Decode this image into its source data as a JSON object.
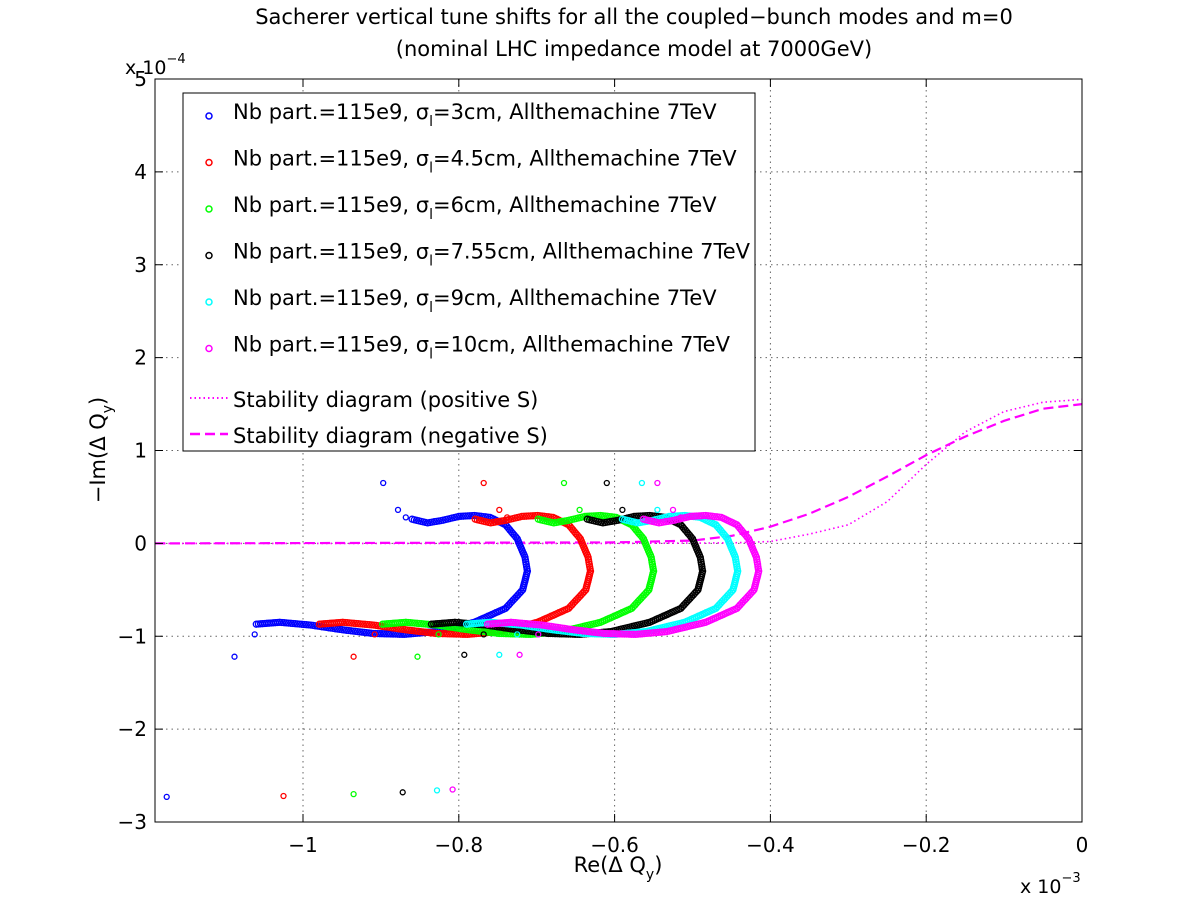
{
  "chart_data": {
    "type": "scatter",
    "title": "Sacherer vertical tune shifts for all the coupled−bunch modes and m=0",
    "subtitle": "(nominal LHC impedance model at 7000GeV)",
    "xlabel": "Re(Δ Q",
    "xlabel_sub": "y",
    "xlabel_close": ")",
    "ylabel": "−Im(Δ Q",
    "ylabel_sub": "y",
    "ylabel_close": ")",
    "x_multiplier_base": "x 10",
    "x_multiplier_exp": "−3",
    "y_multiplier_base": "x 10",
    "y_multiplier_exp": "−4",
    "xlim": [
      -1.19,
      0
    ],
    "ylim": [
      -3,
      5
    ],
    "x_ticks": [
      -1,
      -0.8,
      -0.6,
      -0.4,
      -0.2,
      0
    ],
    "x_tick_labels": [
      "−1",
      "−0.8",
      "−0.6",
      "−0.4",
      "−0.2",
      "0"
    ],
    "y_ticks": [
      -3,
      -2,
      -1,
      0,
      1,
      2,
      3,
      4,
      5
    ],
    "y_tick_labels": [
      "−3",
      "−2",
      "−1",
      "0",
      "1",
      "2",
      "3",
      "4",
      "5"
    ],
    "grid": true,
    "legend_position": "top-left",
    "series": [
      {
        "name_pre": "Nb part.=115e9, σ",
        "name_sub": "l",
        "name_post": "=3cm, Allthemachine 7TeV",
        "color": "#0000ff",
        "dx": 0,
        "outliers": [
          [
            -1.175,
            -2.73
          ],
          [
            -1.088,
            -1.22
          ],
          [
            -1.062,
            -0.98
          ],
          [
            -0.897,
            0.65
          ],
          [
            -0.878,
            0.36
          ],
          [
            -0.868,
            0.28
          ]
        ]
      },
      {
        "name_pre": "Nb part.=115e9, σ",
        "name_sub": "l",
        "name_post": "=4.5cm, Allthemachine 7TeV",
        "color": "#ff0000",
        "dx": 0.081,
        "outliers": [
          [
            -1.025,
            -2.72
          ],
          [
            -0.935,
            -1.22
          ],
          [
            -0.908,
            -0.98
          ],
          [
            -0.768,
            0.65
          ],
          [
            -0.748,
            0.36
          ],
          [
            -0.738,
            0.28
          ]
        ]
      },
      {
        "name_pre": "Nb part.=115e9, σ",
        "name_sub": "l",
        "name_post": "=6cm, Allthemachine 7TeV",
        "color": "#00ff00",
        "dx": 0.162,
        "outliers": [
          [
            -0.935,
            -2.7
          ],
          [
            -0.853,
            -1.22
          ],
          [
            -0.826,
            -0.98
          ],
          [
            -0.665,
            0.65
          ],
          [
            -0.645,
            0.36
          ],
          [
            -0.635,
            0.28
          ]
        ]
      },
      {
        "name_pre": "Nb part.=115e9, σ",
        "name_sub": "l",
        "name_post": "=7.55cm, Allthemachine 7TeV",
        "color": "#000000",
        "dx": 0.225,
        "outliers": [
          [
            -0.872,
            -2.68
          ],
          [
            -0.793,
            -1.2
          ],
          [
            -0.768,
            -0.98
          ],
          [
            -0.61,
            0.65
          ],
          [
            -0.59,
            0.36
          ],
          [
            -0.58,
            0.28
          ]
        ]
      },
      {
        "name_pre": "Nb part.=115e9, σ",
        "name_sub": "l",
        "name_post": "=9cm, Allthemachine 7TeV",
        "color": "#00ffff",
        "dx": 0.27,
        "outliers": [
          [
            -0.828,
            -2.66
          ],
          [
            -0.748,
            -1.2
          ],
          [
            -0.725,
            -0.98
          ],
          [
            -0.565,
            0.65
          ],
          [
            -0.545,
            0.36
          ],
          [
            -0.535,
            0.28
          ]
        ]
      },
      {
        "name_pre": "Nb part.=115e9, σ",
        "name_sub": "l",
        "name_post": "=10cm, Allthemachine 7TeV",
        "color": "#ff00ff",
        "dx": 0.297,
        "outliers": [
          [
            -0.808,
            -2.65
          ],
          [
            -0.722,
            -1.2
          ],
          [
            -0.698,
            -0.98
          ],
          [
            -0.545,
            0.65
          ],
          [
            -0.525,
            0.36
          ],
          [
            -0.515,
            0.28
          ]
        ]
      }
    ],
    "base_loop": [
      [
        -0.86,
        0.26
      ],
      [
        -0.84,
        0.22
      ],
      [
        -0.82,
        0.25
      ],
      [
        -0.8,
        0.29
      ],
      [
        -0.78,
        0.3
      ],
      [
        -0.76,
        0.28
      ],
      [
        -0.74,
        0.2
      ],
      [
        -0.725,
        0.05
      ],
      [
        -0.715,
        -0.15
      ],
      [
        -0.712,
        -0.3
      ],
      [
        -0.718,
        -0.5
      ],
      [
        -0.74,
        -0.7
      ],
      [
        -0.78,
        -0.85
      ],
      [
        -0.83,
        -0.95
      ],
      [
        -0.87,
        -0.98
      ],
      [
        -0.91,
        -0.97
      ],
      [
        -0.95,
        -0.93
      ],
      [
        -0.99,
        -0.88
      ],
      [
        -1.03,
        -0.85
      ],
      [
        -1.06,
        -0.87
      ]
    ],
    "stability_positive": {
      "label": "Stability diagram (positive S)",
      "color": "#ff00ff",
      "points": [
        [
          -1.19,
          0
        ],
        [
          -0.6,
          0
        ],
        [
          -0.45,
          0.005
        ],
        [
          -0.4,
          0.02
        ],
        [
          -0.35,
          0.1
        ],
        [
          -0.3,
          0.2
        ],
        [
          -0.25,
          0.45
        ],
        [
          -0.2,
          0.85
        ],
        [
          -0.15,
          1.2
        ],
        [
          -0.1,
          1.42
        ],
        [
          -0.05,
          1.52
        ],
        [
          0,
          1.55
        ]
      ]
    },
    "stability_negative": {
      "label": "Stability diagram (negative S)",
      "color": "#ff00ff",
      "points": [
        [
          -1.19,
          0
        ],
        [
          -0.6,
          0.01
        ],
        [
          -0.5,
          0.03
        ],
        [
          -0.45,
          0.08
        ],
        [
          -0.4,
          0.18
        ],
        [
          -0.35,
          0.32
        ],
        [
          -0.3,
          0.5
        ],
        [
          -0.25,
          0.72
        ],
        [
          -0.2,
          0.95
        ],
        [
          -0.15,
          1.15
        ],
        [
          -0.1,
          1.32
        ],
        [
          -0.05,
          1.45
        ],
        [
          0,
          1.5
        ]
      ]
    }
  }
}
